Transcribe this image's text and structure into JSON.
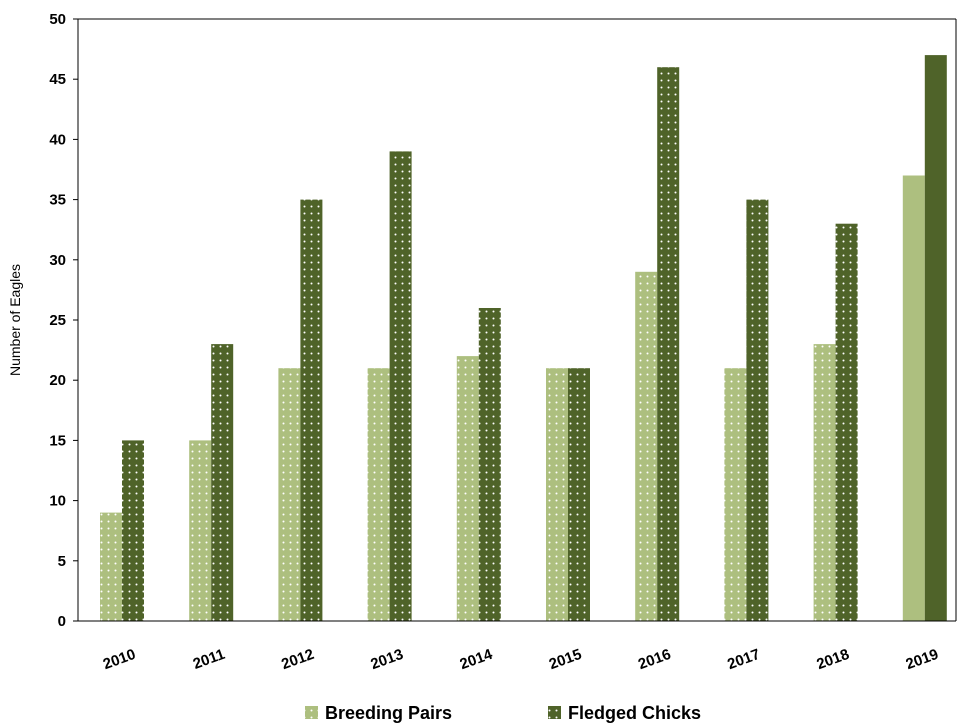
{
  "chart_data": {
    "type": "bar",
    "title": "",
    "xlabel": "",
    "ylabel": "Number of Eagles",
    "categories": [
      "2010",
      "2011",
      "2012",
      "2013",
      "2014",
      "2015",
      "2016",
      "2017",
      "2018",
      "2019"
    ],
    "series": [
      {
        "name": "Breeding Pairs",
        "values": [
          9,
          15,
          21,
          21,
          22,
          21,
          29,
          21,
          23,
          37
        ],
        "color": "#adbf7f"
      },
      {
        "name": "Fledged Chicks",
        "values": [
          15,
          23,
          35,
          39,
          26,
          21,
          46,
          35,
          33,
          47
        ],
        "color": "#4f6329"
      }
    ],
    "ylim": [
      0,
      50
    ],
    "yticks": [
      0,
      5,
      10,
      15,
      20,
      25,
      30,
      35,
      40,
      45,
      50
    ],
    "yticks_text": [
      "0",
      "5",
      "10",
      "15",
      "20",
      "25",
      "30",
      "35",
      "40",
      "45",
      "50"
    ],
    "pattern": "dotted fill on 2010-2018 bars, solid fill on 2019 bars",
    "grid": false,
    "legend_position": "bottom-center"
  }
}
